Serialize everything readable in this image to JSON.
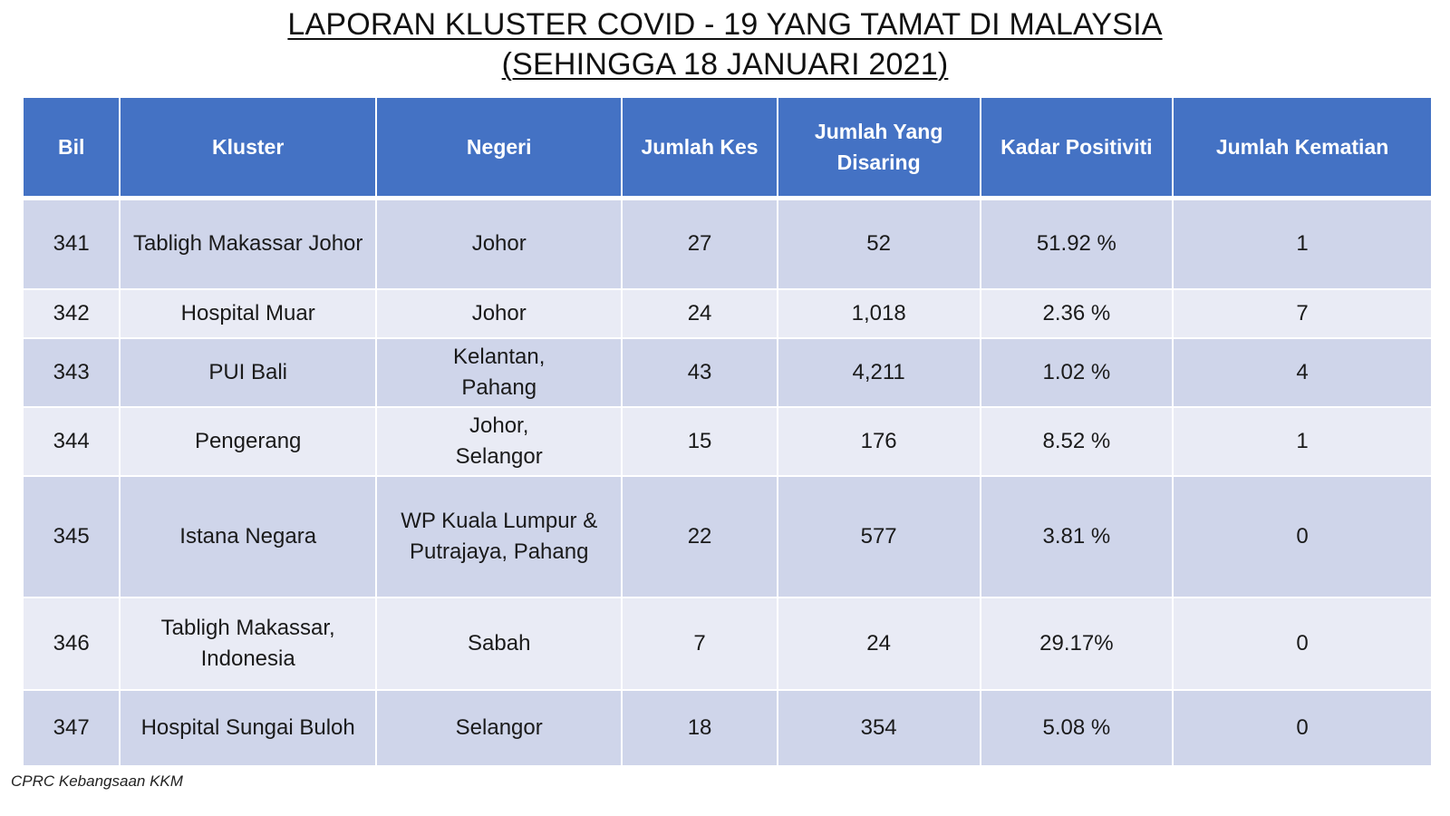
{
  "title": {
    "line1": "LAPORAN KLUSTER COVID - 19 YANG TAMAT DI MALAYSIA",
    "line2": "(SEHINGGA 18 JANUARI 2021)"
  },
  "table": {
    "headers": {
      "bil": "Bil",
      "kluster": "Kluster",
      "negeri": "Negeri",
      "jumlah_kes": "Jumlah Kes",
      "jumlah_disaring": "Jumlah Yang Disaring",
      "kadar_positiviti": "Kadar Positiviti",
      "jumlah_kematian": "Jumlah Kematian"
    },
    "rows": [
      {
        "bil": "341",
        "kluster": "Tabligh Makassar Johor",
        "negeri": "Johor",
        "jumlah_kes": "27",
        "jumlah_disaring": "52",
        "kadar_positiviti": "51.92 %",
        "jumlah_kematian": "1"
      },
      {
        "bil": "342",
        "kluster": "Hospital Muar",
        "negeri": "Johor",
        "jumlah_kes": "24",
        "jumlah_disaring": "1,018",
        "kadar_positiviti": "2.36 %",
        "jumlah_kematian": "7"
      },
      {
        "bil": "343",
        "kluster": "PUI Bali",
        "negeri": "Kelantan, Pahang",
        "jumlah_kes": "43",
        "jumlah_disaring": "4,211",
        "kadar_positiviti": "1.02 %",
        "jumlah_kematian": "4"
      },
      {
        "bil": "344",
        "kluster": "Pengerang",
        "negeri": "Johor, Selangor",
        "jumlah_kes": "15",
        "jumlah_disaring": "176",
        "kadar_positiviti": "8.52 %",
        "jumlah_kematian": "1"
      },
      {
        "bil": "345",
        "kluster": "Istana Negara",
        "negeri": "WP Kuala Lumpur & Putrajaya, Pahang",
        "jumlah_kes": "22",
        "jumlah_disaring": "577",
        "kadar_positiviti": "3.81 %",
        "jumlah_kematian": "0"
      },
      {
        "bil": "346",
        "kluster": "Tabligh Makassar, Indonesia",
        "negeri": "Sabah",
        "jumlah_kes": "7",
        "jumlah_disaring": "24",
        "kadar_positiviti": "29.17%",
        "jumlah_kematian": "0"
      },
      {
        "bil": "347",
        "kluster": "Hospital Sungai Buloh",
        "negeri": "Selangor",
        "jumlah_kes": "18",
        "jumlah_disaring": "354",
        "kadar_positiviti": "5.08 %",
        "jumlah_kematian": "0"
      }
    ]
  },
  "colors": {
    "header_bg": "#4472c4",
    "row_dark": "#cfd5ea",
    "row_light": "#e9ebf5"
  },
  "footer": {
    "source": "CPRC Kebangsaan KKM"
  }
}
